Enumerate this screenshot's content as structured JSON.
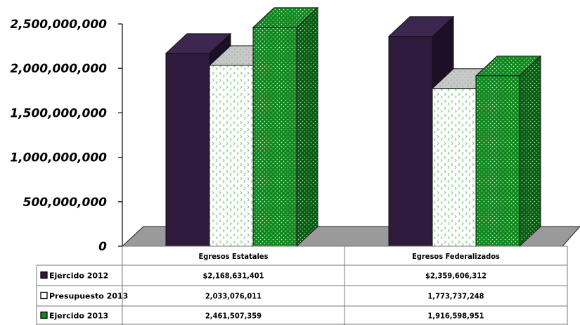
{
  "chart_data": {
    "type": "bar",
    "categories": [
      "Egresos Estatales",
      "Egresos Federalizados"
    ],
    "series": [
      {
        "name": "Ejercido 2012",
        "values": [
          2168631401,
          2359606312
        ],
        "color": "#2E1A3A"
      },
      {
        "name": "Presupuesto 2013",
        "values": [
          2033076011,
          1773737248
        ],
        "color": "#FFFFFF"
      },
      {
        "name": "Ejercido 2013",
        "values": [
          2461507359,
          1916598951
        ],
        "color": "#11871F"
      }
    ],
    "table_values": [
      [
        "$2,168,631,401",
        "$2,359,606,312"
      ],
      [
        "2,033,076,011",
        "1,773,737,248"
      ],
      [
        "2,461,507,359",
        "1,916,598,951"
      ]
    ],
    "yticks": [
      "0",
      "500,000,000",
      "1,000,000,000",
      "1,500,000,000",
      "2,000,000,000",
      "2,500,000,000"
    ],
    "ylim": [
      0,
      2500000000
    ],
    "grid": false,
    "legend": "data-table"
  }
}
